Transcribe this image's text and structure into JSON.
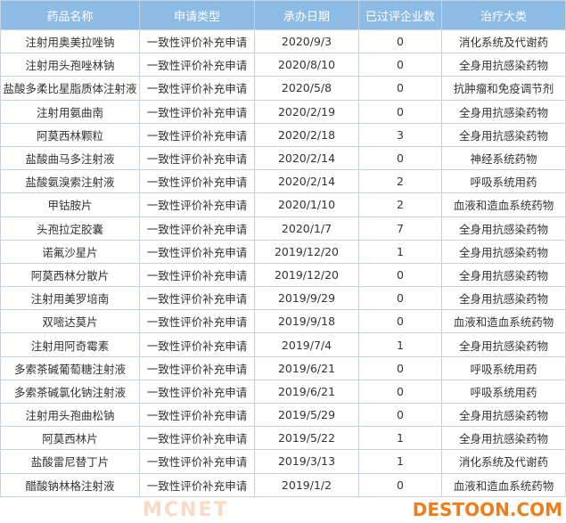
{
  "colors": {
    "header_bg": "#8cbbe6",
    "watermark": "#f07d1a"
  },
  "headers": [
    "药品名称",
    "申请类型",
    "承办日期",
    "已过评企业数",
    "治疗大类"
  ],
  "rows": [
    [
      "注射用奥美拉唑钠",
      "一致性评价补充申请",
      "2020/9/3",
      "0",
      "消化系统及代谢药"
    ],
    [
      "注射用头孢唑林钠",
      "一致性评价补充申请",
      "2020/8/10",
      "0",
      "全身用抗感染药物"
    ],
    [
      "盐酸多柔比星脂质体注射液",
      "一致性评价补充申请",
      "2020/5/8",
      "0",
      "抗肿瘤和免疫调节剂"
    ],
    [
      "注射用氨曲南",
      "一致性评价补充申请",
      "2020/2/19",
      "0",
      "全身用抗感染药物"
    ],
    [
      "阿莫西林颗粒",
      "一致性评价补充申请",
      "2020/2/18",
      "3",
      "全身用抗感染药物"
    ],
    [
      "盐酸曲马多注射液",
      "一致性评价补充申请",
      "2020/2/14",
      "0",
      "神经系统药物"
    ],
    [
      "盐酸氨溴索注射液",
      "一致性评价补充申请",
      "2020/2/14",
      "2",
      "呼吸系统用药"
    ],
    [
      "甲钴胺片",
      "一致性评价补充申请",
      "2020/1/10",
      "2",
      "血液和造血系统药物"
    ],
    [
      "头孢拉定胶囊",
      "一致性评价补充申请",
      "2020/1/7",
      "7",
      "全身用抗感染药物"
    ],
    [
      "诺氟沙星片",
      "一致性评价补充申请",
      "2019/12/20",
      "1",
      "全身用抗感染药物"
    ],
    [
      "阿莫西林分散片",
      "一致性评价补充申请",
      "2019/12/20",
      "0",
      "全身用抗感染药物"
    ],
    [
      "注射用美罗培南",
      "一致性评价补充申请",
      "2019/9/29",
      "0",
      "全身用抗感染药物"
    ],
    [
      "双嘧达莫片",
      "一致性评价补充申请",
      "2019/9/18",
      "0",
      "血液和造血系统药物"
    ],
    [
      "注射用阿奇霉素",
      "一致性评价补充申请",
      "2019/7/4",
      "1",
      "全身用抗感染药物"
    ],
    [
      "多索茶碱葡萄糖注射液",
      "一致性评价补充申请",
      "2019/6/21",
      "0",
      "呼吸系统用药"
    ],
    [
      "多索茶碱氯化钠注射液",
      "一致性评价补充申请",
      "2019/6/21",
      "0",
      "呼吸系统用药"
    ],
    [
      "注射用头孢曲松钠",
      "一致性评价补充申请",
      "2019/5/29",
      "0",
      "全身用抗感染药物"
    ],
    [
      "阿莫西林片",
      "一致性评价补充申请",
      "2019/5/22",
      "1",
      "全身用抗感染药物"
    ],
    [
      "盐酸雷尼替丁片",
      "一致性评价补充申请",
      "2019/3/13",
      "1",
      "消化系统及代谢药"
    ],
    [
      "醋酸钠林格注射液",
      "一致性评价补充申请",
      "2019/1/2",
      "0",
      "血液和造血系统药物"
    ]
  ],
  "watermarks": {
    "center": "MCNET",
    "corner": "DESTOON.COM"
  }
}
